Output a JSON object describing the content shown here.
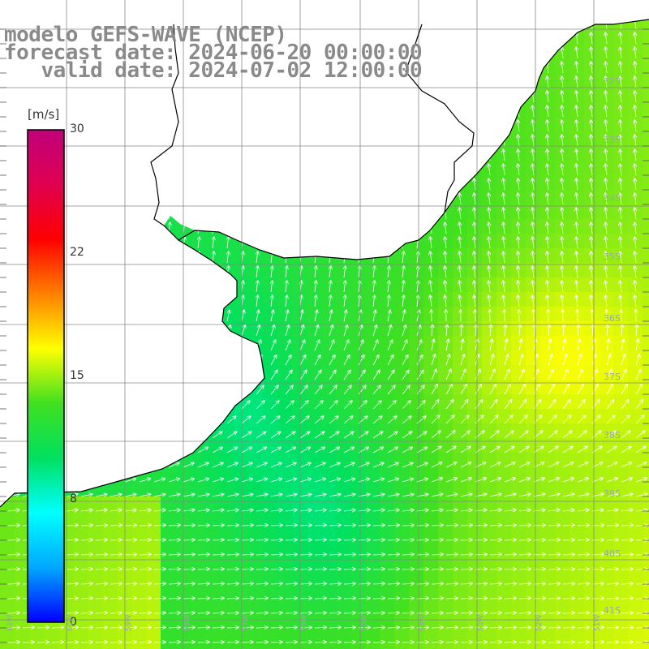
{
  "title": {
    "line1": "modelo GEFS-WAVE (NCEP)",
    "line2": "forecast date: 2024-06-20 00:00:00",
    "line3": "   valid date: 2024-07-02 12:00:00"
  },
  "colorbar": {
    "unit": "[m/s]",
    "ticks": [
      "30",
      "22",
      "15",
      "8",
      "0"
    ],
    "range": [
      0,
      30
    ],
    "stops": [
      "#0000ff",
      "#00a8ff",
      "#00ffff",
      "#00e060",
      "#40e020",
      "#ffff00",
      "#ff8000",
      "#ff0000",
      "#e00050",
      "#c0007a"
    ]
  },
  "axes": {
    "lat_labels": [
      "32S",
      "33S",
      "34S",
      "35S",
      "36S",
      "37S",
      "38S",
      "39S",
      "40S",
      "41S"
    ],
    "lon_labels": [
      "61W",
      "60W",
      "59W",
      "58W",
      "57W",
      "56W",
      "55W",
      "54W",
      "53W",
      "52W",
      "51W"
    ]
  },
  "colors": {
    "land": "#ffffff",
    "coast": "#000000",
    "grid": "#888888",
    "arrow": "#ffffff"
  }
}
